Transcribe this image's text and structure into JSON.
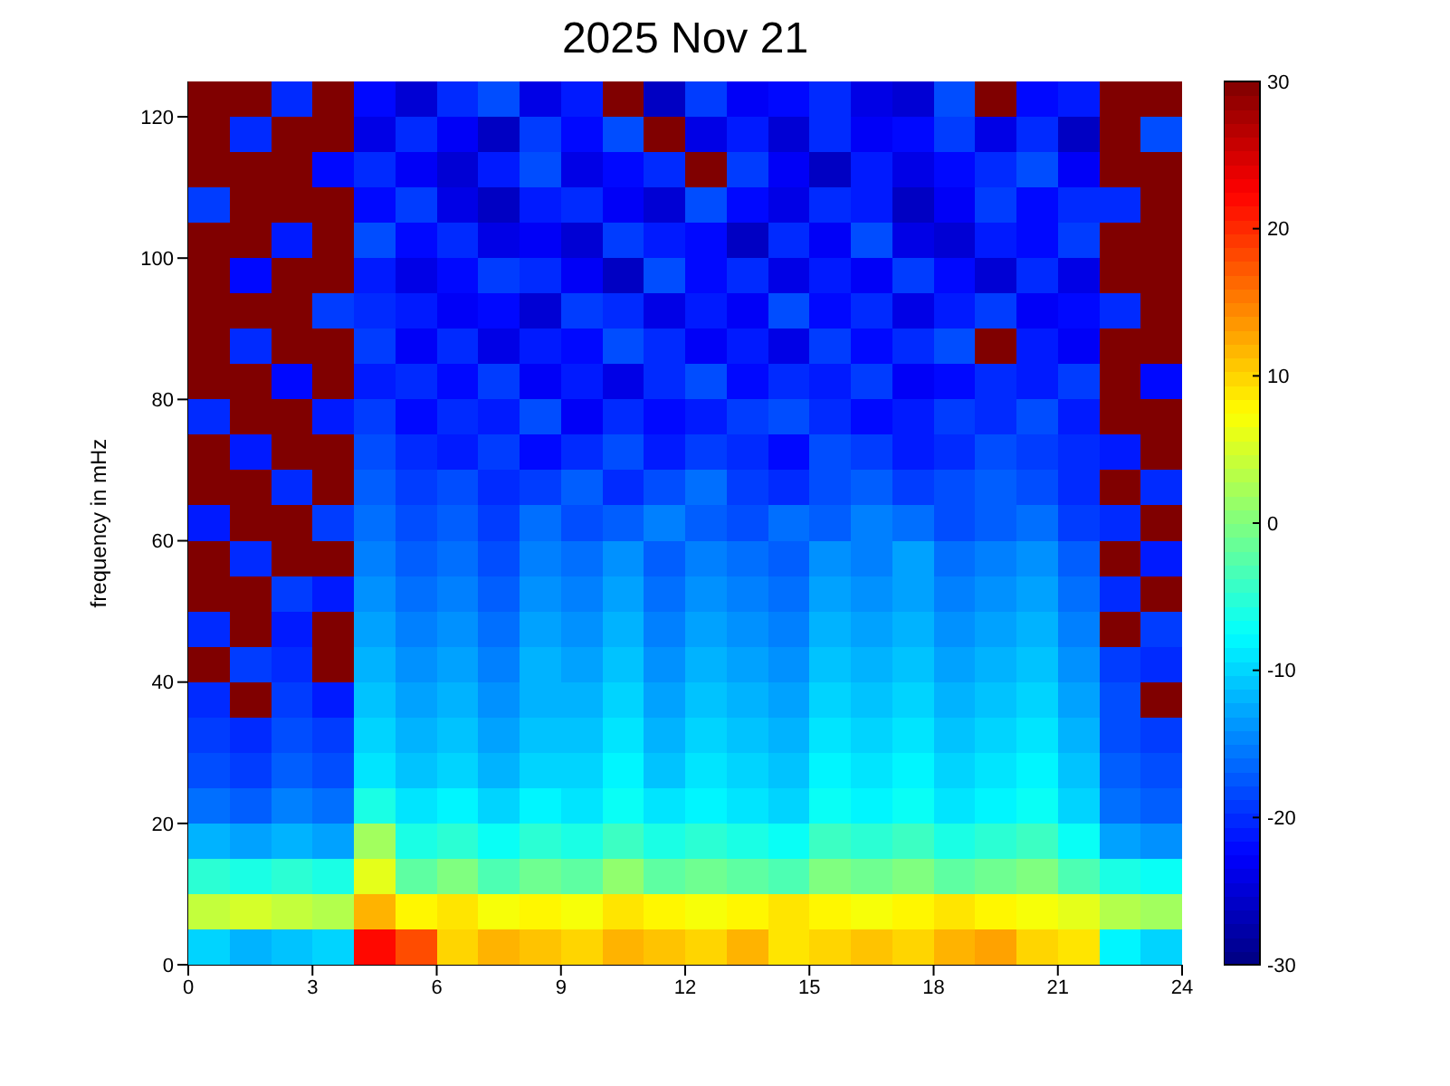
{
  "chart_data": {
    "type": "heatmap",
    "title": "2025 Nov 21",
    "ylabel": "frequency in mHz",
    "x": [
      0.5,
      1.5,
      2.5,
      3.5,
      4.5,
      5.5,
      6.5,
      7.5,
      8.5,
      9.5,
      10.5,
      11.5,
      12.5,
      13.5,
      14.5,
      15.5,
      16.5,
      17.5,
      18.5,
      19.5,
      20.5,
      21.5,
      22.5,
      23.5
    ],
    "y": [
      122.5,
      117.5,
      112.5,
      107.5,
      102.5,
      97.5,
      92.5,
      87.5,
      82.5,
      77.5,
      72.5,
      67.5,
      62.5,
      57.5,
      52.5,
      47.5,
      42.5,
      37.5,
      32.5,
      27.5,
      22.5,
      17.5,
      12.5,
      7.5,
      2.5
    ],
    "xlim": [
      0,
      24
    ],
    "xticks": [
      0,
      3,
      6,
      9,
      12,
      15,
      18,
      21,
      24
    ],
    "ylim": [
      0,
      125
    ],
    "yticks": [
      0,
      20,
      40,
      60,
      80,
      100,
      120
    ],
    "clim": [
      -30,
      30
    ],
    "cticks": [
      -30,
      -20,
      -10,
      0,
      10,
      20,
      30
    ],
    "cells": [
      [
        30,
        30,
        -20,
        30,
        -22,
        -25,
        -20,
        -18,
        -24,
        -21,
        30,
        -26,
        -19,
        -23,
        -22,
        -20,
        -24,
        -25,
        -18,
        30,
        -22,
        -21,
        30,
        30
      ],
      [
        30,
        -20,
        30,
        30,
        -24,
        -20,
        -23,
        -26,
        -19,
        -22,
        -18,
        30,
        -24,
        -21,
        -25,
        -20,
        -23,
        -22,
        -19,
        -24,
        -20,
        -26,
        30,
        -18
      ],
      [
        30,
        30,
        30,
        -22,
        -20,
        -23,
        -25,
        -21,
        -18,
        -24,
        -22,
        -20,
        30,
        -19,
        -23,
        -26,
        -21,
        -24,
        -22,
        -20,
        -18,
        -23,
        30,
        30
      ],
      [
        -19,
        30,
        30,
        30,
        -22,
        -19,
        -24,
        -26,
        -21,
        -20,
        -23,
        -25,
        -18,
        -22,
        -24,
        -20,
        -21,
        -26,
        -23,
        -19,
        -22,
        -20,
        -20,
        30
      ],
      [
        30,
        30,
        -21,
        30,
        -18,
        -22,
        -20,
        -24,
        -23,
        -25,
        -19,
        -21,
        -22,
        -26,
        -20,
        -23,
        -18,
        -24,
        -25,
        -21,
        -22,
        -19,
        30,
        30
      ],
      [
        30,
        -22,
        30,
        30,
        -21,
        -24,
        -22,
        -19,
        -20,
        -23,
        -26,
        -18,
        -22,
        -20,
        -24,
        -21,
        -23,
        -19,
        -22,
        -25,
        -20,
        -24,
        30,
        30
      ],
      [
        30,
        30,
        30,
        -19,
        -20,
        -21,
        -23,
        -22,
        -25,
        -19,
        -20,
        -24,
        -21,
        -23,
        -18,
        -22,
        -20,
        -24,
        -21,
        -19,
        -23,
        -22,
        -20,
        30
      ],
      [
        30,
        -20,
        30,
        30,
        -19,
        -23,
        -20,
        -24,
        -21,
        -22,
        -18,
        -20,
        -23,
        -21,
        -24,
        -19,
        -22,
        -20,
        -18,
        30,
        -21,
        -23,
        30,
        30
      ],
      [
        30,
        30,
        -22,
        30,
        -21,
        -20,
        -22,
        -19,
        -23,
        -21,
        -24,
        -20,
        -18,
        -22,
        -20,
        -21,
        -19,
        -23,
        -22,
        -20,
        -21,
        -19,
        30,
        -22
      ],
      [
        -20,
        30,
        30,
        -21,
        -19,
        -22,
        -20,
        -21,
        -18,
        -23,
        -20,
        -22,
        -21,
        -19,
        -18,
        -20,
        -22,
        -21,
        -19,
        -20,
        -18,
        -21,
        30,
        30
      ],
      [
        30,
        -21,
        30,
        30,
        -18,
        -20,
        -21,
        -19,
        -22,
        -20,
        -18,
        -21,
        -19,
        -20,
        -22,
        -18,
        -19,
        -21,
        -20,
        -18,
        -19,
        -20,
        -21,
        30
      ],
      [
        30,
        30,
        -20,
        30,
        -17,
        -19,
        -18,
        -20,
        -19,
        -17,
        -20,
        -18,
        -16,
        -19,
        -20,
        -18,
        -17,
        -19,
        -18,
        -17,
        -18,
        -20,
        30,
        -20
      ],
      [
        -21,
        30,
        30,
        -19,
        -16,
        -18,
        -17,
        -19,
        -16,
        -18,
        -17,
        -15,
        -17,
        -18,
        -16,
        -17,
        -15,
        -16,
        -18,
        -17,
        -16,
        -19,
        -20,
        30
      ],
      [
        30,
        -20,
        30,
        30,
        -15,
        -17,
        -16,
        -18,
        -15,
        -16,
        -14,
        -17,
        -15,
        -16,
        -17,
        -14,
        -15,
        -13,
        -16,
        -15,
        -14,
        -17,
        30,
        -21
      ],
      [
        30,
        30,
        -19,
        -21,
        -14,
        -16,
        -15,
        -17,
        -14,
        -15,
        -13,
        -16,
        -14,
        -15,
        -16,
        -13,
        -14,
        -13,
        -15,
        -14,
        -13,
        -16,
        -20,
        30
      ],
      [
        -20,
        30,
        -21,
        30,
        -13,
        -15,
        -14,
        -16,
        -13,
        -14,
        -12,
        -15,
        -13,
        -14,
        -15,
        -12,
        -13,
        -12,
        -14,
        -13,
        -12,
        -15,
        30,
        -19
      ],
      [
        30,
        -19,
        -20,
        30,
        -12,
        -14,
        -13,
        -15,
        -12,
        -13,
        -11,
        -14,
        -12,
        -13,
        -14,
        -11,
        -12,
        -11,
        -13,
        -12,
        -11,
        -14,
        -19,
        -20
      ],
      [
        -20,
        30,
        -19,
        -21,
        -11,
        -13,
        -12,
        -14,
        -12,
        -12,
        -10,
        -13,
        -11,
        -12,
        -13,
        -10,
        -11,
        -10,
        -12,
        -11,
        -10,
        -13,
        -18,
        30
      ],
      [
        -19,
        -20,
        -18,
        -19,
        -10,
        -12,
        -11,
        -13,
        -11,
        -11,
        -9,
        -12,
        -10,
        -11,
        -12,
        -9,
        -10,
        -9,
        -11,
        -10,
        -9,
        -12,
        -18,
        -19
      ],
      [
        -18,
        -19,
        -17,
        -18,
        -9,
        -11,
        -10,
        -12,
        -10,
        -10,
        -8,
        -11,
        -9,
        -10,
        -11,
        -8,
        -9,
        -8,
        -10,
        -9,
        -8,
        -11,
        -17,
        -18
      ],
      [
        -16,
        -17,
        -15,
        -16,
        -6,
        -9,
        -8,
        -10,
        -8,
        -9,
        -7,
        -9,
        -8,
        -9,
        -10,
        -7,
        -8,
        -7,
        -9,
        -8,
        -7,
        -10,
        -16,
        -17
      ],
      [
        -12,
        -13,
        -12,
        -13,
        2,
        -6,
        -5,
        -7,
        -5,
        -6,
        -4,
        -6,
        -5,
        -6,
        -7,
        -4,
        -5,
        -4,
        -6,
        -5,
        -4,
        -7,
        -13,
        -14
      ],
      [
        -5,
        -6,
        -5,
        -6,
        6,
        -2,
        0,
        -3,
        -1,
        -2,
        1,
        -2,
        -1,
        -2,
        -3,
        0,
        -1,
        0,
        -2,
        -1,
        0,
        -3,
        -6,
        -7
      ],
      [
        4,
        5,
        4,
        3,
        12,
        8,
        9,
        7,
        8,
        7,
        9,
        8,
        7,
        8,
        9,
        8,
        7,
        8,
        9,
        8,
        7,
        6,
        3,
        2
      ],
      [
        -10,
        -12,
        -11,
        -10,
        22,
        18,
        10,
        12,
        11,
        10,
        12,
        11,
        10,
        12,
        9,
        10,
        11,
        10,
        12,
        13,
        10,
        9,
        -8,
        -10
      ]
    ]
  }
}
